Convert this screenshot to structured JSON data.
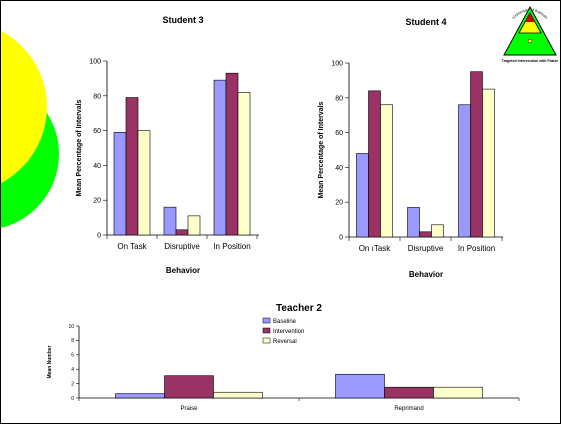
{
  "colors": {
    "baseline": "#9999ff",
    "intervention": "#993366",
    "reversal": "#ffffcc",
    "yellow": "#ffff00",
    "green": "#00ff00",
    "logo_red": "#cc0000"
  },
  "logo": {
    "top_text": "University of Kansas",
    "caption": "Targeted Intervention with Praise"
  },
  "chart_data": [
    {
      "type": "bar",
      "title": "Student 3",
      "xlabel": "Behavior",
      "ylabel": "Mean Percentage of Intervals",
      "ylim": [
        0,
        100
      ],
      "yticks": [
        0,
        20,
        40,
        60,
        80,
        100
      ],
      "categories": [
        "On Task",
        "Disruptive",
        "In Position"
      ],
      "series": [
        {
          "values": [
            59,
            16,
            89
          ]
        },
        {
          "values": [
            79,
            3,
            93
          ]
        },
        {
          "values": [
            60,
            11,
            82
          ]
        }
      ]
    },
    {
      "type": "bar",
      "title": "Student 4",
      "xlabel": "Behavior",
      "ylabel": "Mean Percentage of Intervals",
      "ylim": [
        0,
        100
      ],
      "yticks": [
        0,
        20,
        40,
        60,
        80,
        100
      ],
      "categories": [
        "On ıTask",
        "Disruptive",
        "In Position"
      ],
      "series": [
        {
          "values": [
            48,
            17,
            76
          ]
        },
        {
          "values": [
            84,
            3,
            95
          ]
        },
        {
          "values": [
            76,
            7,
            85
          ]
        }
      ]
    },
    {
      "type": "bar",
      "title": "Teacher 2",
      "xlabel": "",
      "ylabel": "Mean Number",
      "ylim": [
        0,
        10
      ],
      "yticks": [
        0,
        2,
        4,
        6,
        8,
        10
      ],
      "categories": [
        "Praise",
        "Reprimand"
      ],
      "legend_position": "top-center",
      "series": [
        {
          "name": "Baseline",
          "values": [
            0.6,
            3.3
          ]
        },
        {
          "name": "Intervention",
          "values": [
            3.1,
            1.5
          ]
        },
        {
          "name": "Reversal",
          "values": [
            0.8,
            1.5
          ]
        }
      ]
    }
  ]
}
